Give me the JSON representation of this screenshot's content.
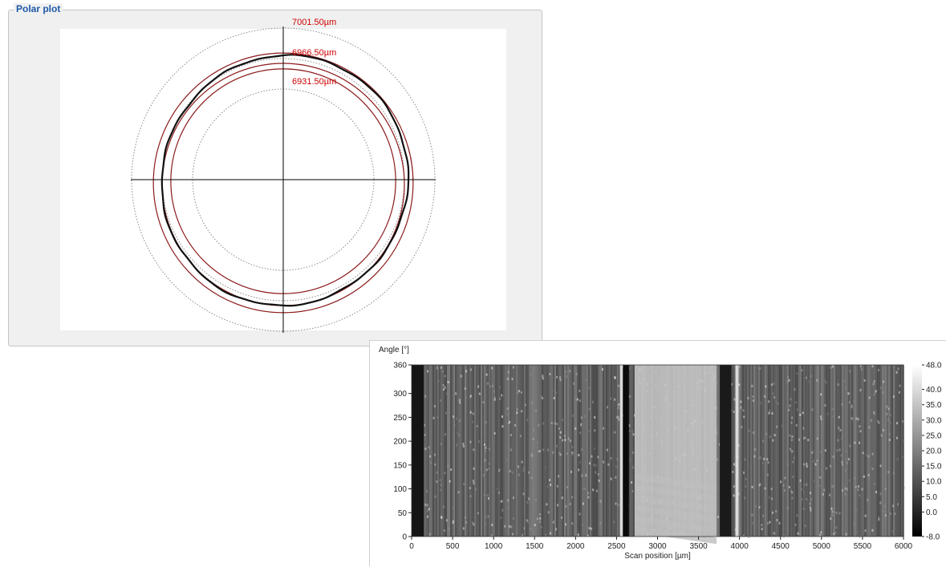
{
  "polar_panel": {
    "title": "Polar plot",
    "ring_labels": [
      "7001.50µm",
      "6966.50µm",
      "6931.50µm"
    ]
  },
  "colors": {
    "panel_title": "#1f5aa6",
    "ring_label": "#cc0000",
    "tolerance_ring": "#8b1a1a",
    "profile_line": "#111111"
  },
  "chart_data": [
    {
      "type": "line",
      "title": "Polar plot",
      "polar": true,
      "unit": "µm",
      "reference_circles": [
        {
          "radius": 7001.5,
          "label": "7001.50µm",
          "style": "dotted"
        },
        {
          "radius": 6966.5,
          "label": "6966.50µm",
          "style": "dotted"
        },
        {
          "radius": 6931.5,
          "label": "6931.50µm",
          "style": "dotted"
        }
      ],
      "tolerance_circles": [
        6956.5,
        6966.5,
        6976.5
      ],
      "measured_profile_radius_range": [
        6968,
        6972
      ],
      "grid": "crosshair"
    },
    {
      "type": "heatmap",
      "xlabel": "Scan position [µm]",
      "ylabel": "Angle [°]",
      "xlim": [
        0,
        6000
      ],
      "ylim": [
        0,
        360
      ],
      "x_ticks": [
        "0",
        "500",
        "1000",
        "1500",
        "2000",
        "2500",
        "3000",
        "3500",
        "4000",
        "4500",
        "5000",
        "5500",
        "6000"
      ],
      "y_ticks": [
        "0",
        "50",
        "100",
        "150",
        "200",
        "250",
        "300",
        "360"
      ],
      "colorbar_ticks": [
        "48.0",
        "40.0",
        "35.0",
        "30.0",
        "25.0",
        "20.0",
        "15.0",
        "10.0",
        "5.0",
        "0.0",
        "-8.0"
      ],
      "colorbar_range": [
        -8.0,
        48.0
      ],
      "colormap": "grayscale"
    }
  ]
}
